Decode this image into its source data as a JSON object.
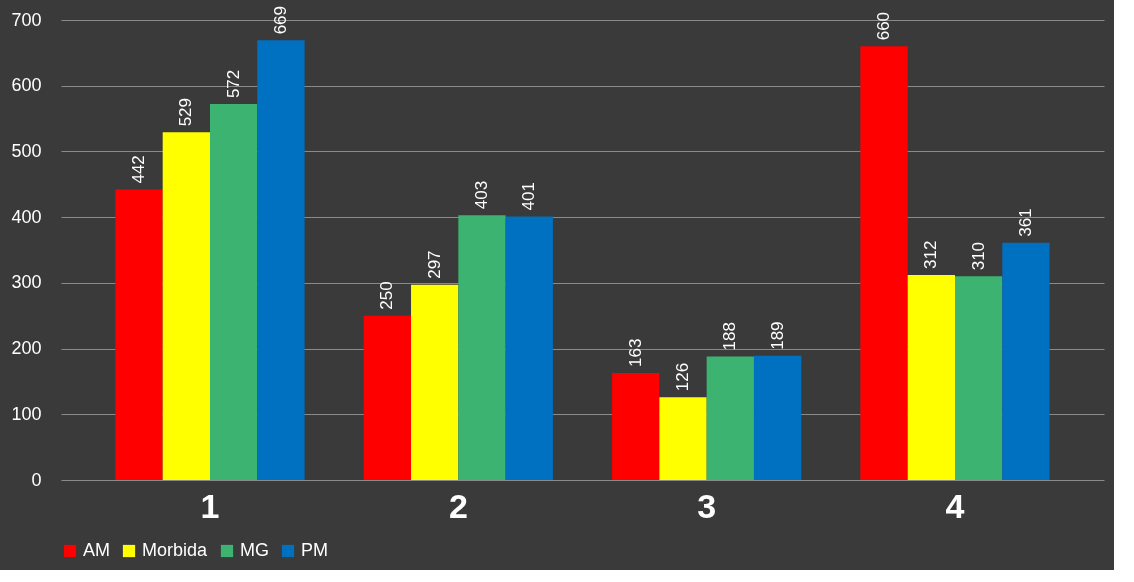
{
  "chart_data": {
    "type": "bar",
    "categories": [
      "1",
      "2",
      "3",
      "4"
    ],
    "series": [
      {
        "name": "AM",
        "color": "#ff0000",
        "values": [
          442,
          250,
          163,
          660
        ]
      },
      {
        "name": "Morbida",
        "color": "#ffff00",
        "values": [
          529,
          297,
          126,
          312
        ]
      },
      {
        "name": "MG",
        "color": "#3cb371",
        "values": [
          572,
          403,
          188,
          310
        ]
      },
      {
        "name": "PM",
        "color": "#0070c0",
        "values": [
          669,
          401,
          189,
          361
        ]
      }
    ],
    "ylim": [
      0,
      700
    ],
    "yticks": [
      0,
      100,
      200,
      300,
      400,
      500,
      600,
      700
    ],
    "grid": true,
    "legend": "bottom",
    "data_labels": true
  }
}
